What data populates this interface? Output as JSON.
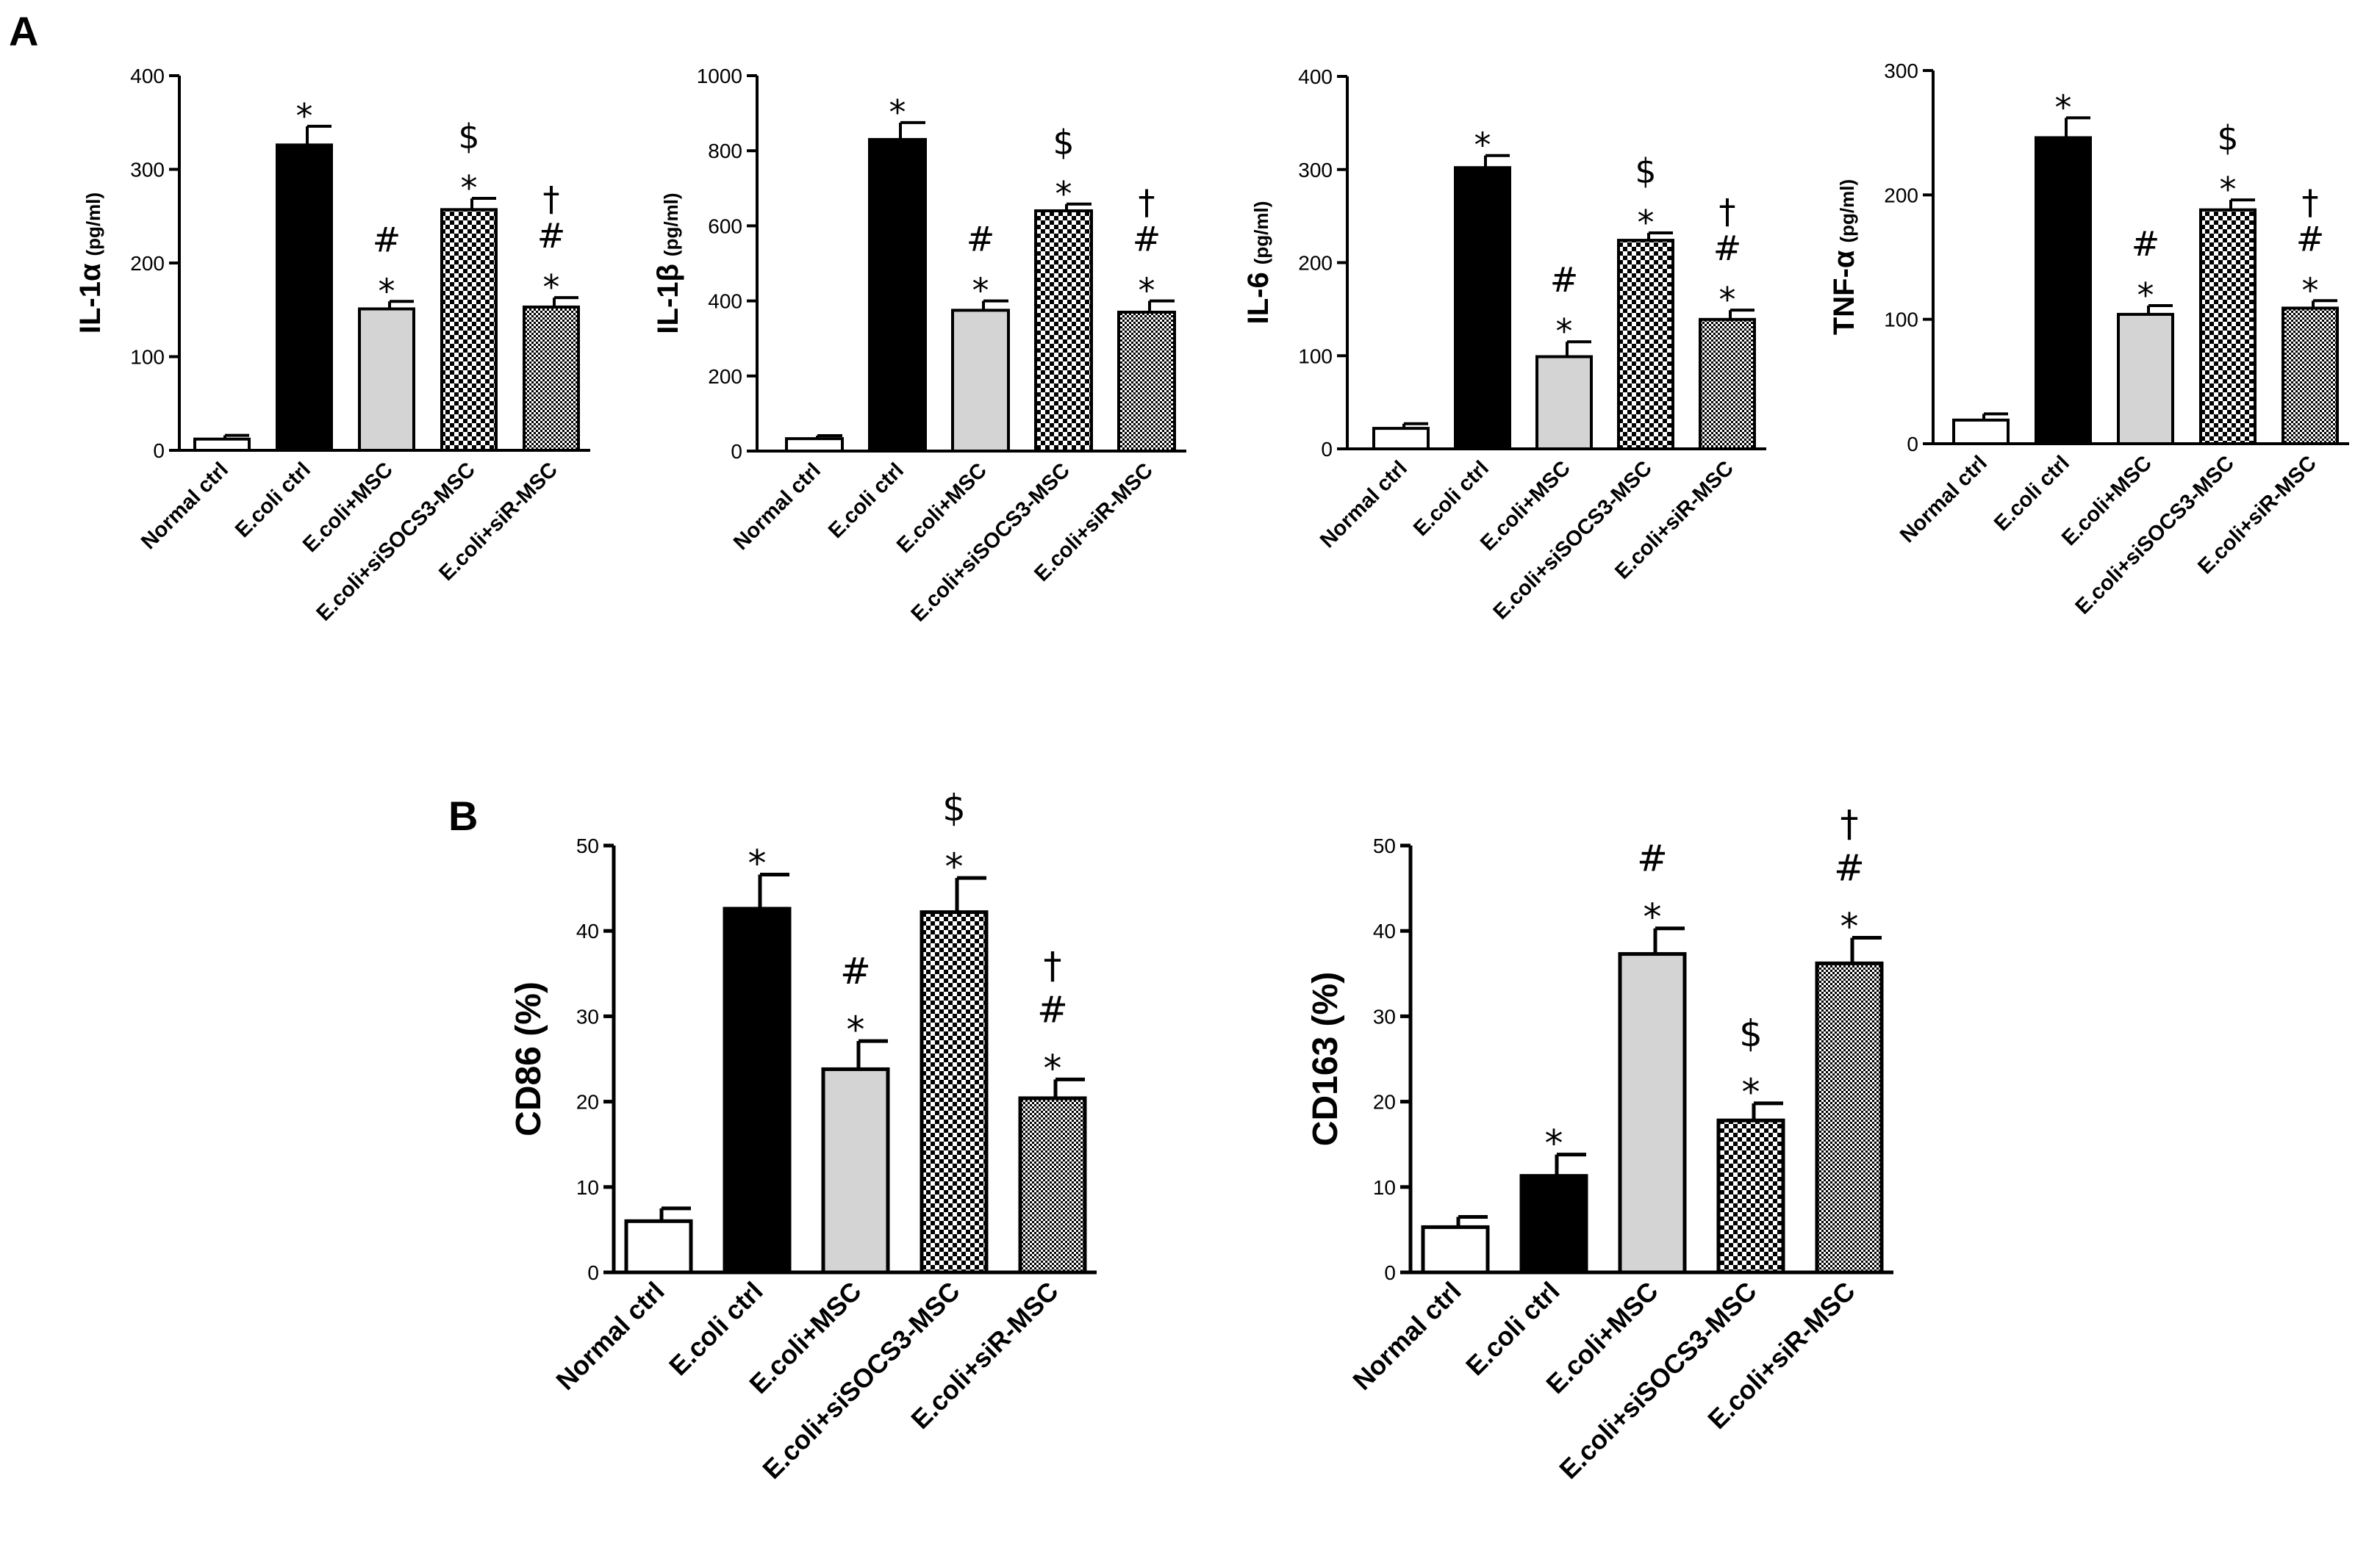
{
  "panels": {
    "a_label": "A",
    "b_label": "B"
  },
  "chart_data": [
    {
      "type": "bar",
      "panel": "A",
      "ylabel": "IL-1α",
      "yunit": "(pg/ml)",
      "ylim": [
        0,
        400
      ],
      "yticks": [
        "0",
        "100",
        "200",
        "300",
        "400"
      ],
      "categories": [
        "Normal ctrl",
        "E.coli ctrl",
        "E.coli+MSC",
        "E.coli+siSOCS3-MSC",
        "E.coli+siR-MSC"
      ],
      "values": [
        12,
        326,
        151,
        257,
        153
      ],
      "errors": [
        4,
        20,
        8,
        12,
        10
      ],
      "fills": [
        "white",
        "black",
        "gray",
        "checker",
        "fine"
      ],
      "annotations": [
        [],
        [
          "*"
        ],
        [
          "*",
          "#"
        ],
        [
          "*",
          "$"
        ],
        [
          "*",
          "#",
          "†"
        ]
      ]
    },
    {
      "type": "bar",
      "panel": "A",
      "ylabel": "IL-1β",
      "yunit": "(pg/ml)",
      "ylim": [
        0,
        1000
      ],
      "yticks": [
        "0",
        "200",
        "400",
        "600",
        "800",
        "1000"
      ],
      "categories": [
        "Normal ctrl",
        "E.coli ctrl",
        "E.coli+MSC",
        "E.coli+siSOCS3-MSC",
        "E.coli+siR-MSC"
      ],
      "values": [
        33,
        830,
        375,
        640,
        370
      ],
      "errors": [
        8,
        45,
        25,
        18,
        30
      ],
      "fills": [
        "white",
        "black",
        "gray",
        "checker",
        "fine"
      ],
      "annotations": [
        [],
        [
          "*"
        ],
        [
          "*",
          "#"
        ],
        [
          "*",
          "$"
        ],
        [
          "*",
          "#",
          "†"
        ]
      ]
    },
    {
      "type": "bar",
      "panel": "A",
      "ylabel": "IL-6",
      "yunit": "(pg/ml)",
      "ylim": [
        0,
        400
      ],
      "yticks": [
        "0",
        "100",
        "200",
        "300",
        "400"
      ],
      "categories": [
        "Normal ctrl",
        "E.coli ctrl",
        "E.coli+MSC",
        "E.coli+siSOCS3-MSC",
        "E.coli+siR-MSC"
      ],
      "values": [
        22,
        302,
        99,
        224,
        139
      ],
      "errors": [
        5,
        13,
        16,
        8,
        10
      ],
      "fills": [
        "white",
        "black",
        "gray",
        "checker",
        "fine"
      ],
      "annotations": [
        [],
        [
          "*"
        ],
        [
          "*",
          "#"
        ],
        [
          "*",
          "$"
        ],
        [
          "*",
          "#",
          "†"
        ]
      ]
    },
    {
      "type": "bar",
      "panel": "A",
      "ylabel": "TNF-α",
      "yunit": "(pg/ml)",
      "ylim": [
        0,
        300
      ],
      "yticks": [
        "0",
        "100",
        "200",
        "300"
      ],
      "categories": [
        "Normal ctrl",
        "E.coli ctrl",
        "E.coli+MSC",
        "E.coli+siSOCS3-MSC",
        "E.coli+siR-MSC"
      ],
      "values": [
        19,
        246,
        104,
        188,
        109
      ],
      "errors": [
        5,
        16,
        7,
        8,
        6
      ],
      "fills": [
        "white",
        "black",
        "gray",
        "checker",
        "fine"
      ],
      "annotations": [
        [],
        [
          "*"
        ],
        [
          "*",
          "#"
        ],
        [
          "*",
          "$"
        ],
        [
          "*",
          "#",
          "†"
        ]
      ]
    },
    {
      "type": "bar",
      "panel": "B",
      "ylabel": "CD86 (%)",
      "yunit": "",
      "ylim": [
        0,
        50
      ],
      "yticks": [
        "0",
        "10",
        "20",
        "30",
        "40",
        "50"
      ],
      "categories": [
        "Normal ctrl",
        "E.coli ctrl",
        "E.coli+MSC",
        "E.coli+siSOCS3-MSC",
        "E.coli+siR-MSC"
      ],
      "values": [
        6,
        42.6,
        23.8,
        42.2,
        20.4
      ],
      "errors": [
        1.5,
        4,
        3.3,
        4,
        2.2
      ],
      "fills": [
        "white",
        "black",
        "gray",
        "checker",
        "fine"
      ],
      "annotations": [
        [],
        [
          "*"
        ],
        [
          "*",
          "#"
        ],
        [
          "*",
          "$"
        ],
        [
          "*",
          "#",
          "†"
        ]
      ]
    },
    {
      "type": "bar",
      "panel": "B",
      "ylabel": "CD163 (%)",
      "yunit": "",
      "ylim": [
        0,
        50
      ],
      "yticks": [
        "0",
        "10",
        "20",
        "30",
        "40",
        "50"
      ],
      "categories": [
        "Normal ctrl",
        "E.coli ctrl",
        "E.coli+MSC",
        "E.coli+siSOCS3-MSC",
        "E.coli+siR-MSC"
      ],
      "values": [
        5.3,
        11.3,
        37.3,
        17.8,
        36.2
      ],
      "errors": [
        1.2,
        2.5,
        3,
        2,
        3
      ],
      "fills": [
        "white",
        "black",
        "gray",
        "checker",
        "fine"
      ],
      "annotations": [
        [],
        [
          "*"
        ],
        [
          "*",
          "#"
        ],
        [
          "*",
          "$"
        ],
        [
          "*",
          "#",
          "†"
        ]
      ]
    }
  ]
}
